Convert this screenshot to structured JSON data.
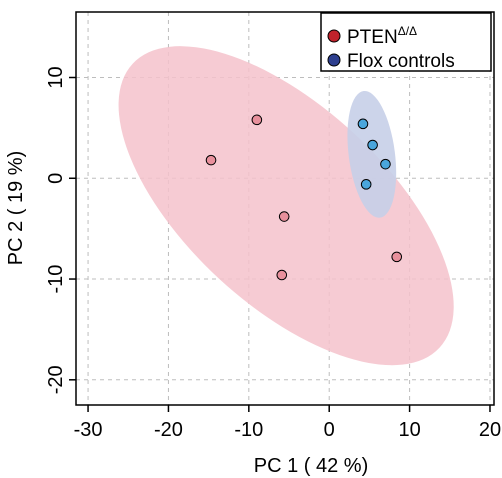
{
  "chart_data": {
    "type": "scatter",
    "xlabel": "PC 1 ( 42 %)",
    "ylabel": "PC 2 ( 19 %)",
    "xlim": [
      -31.5,
      20.5
    ],
    "ylim": [
      -22.5,
      16.5
    ],
    "xticks": [
      -30,
      -20,
      -10,
      0,
      10,
      20
    ],
    "yticks": [
      -20,
      -10,
      0,
      10
    ],
    "xtick_labels": [
      "-30",
      "-20",
      "-10",
      "0",
      "10",
      "20"
    ],
    "ytick_labels": [
      "-20",
      "-10",
      "0",
      "10"
    ],
    "grid": true,
    "legend_position": "top-right",
    "series": [
      {
        "name": "PTEN",
        "name_superscript": "Δ/Δ",
        "color": "#e8909c",
        "legend_color": "#c0222b",
        "ellipse_color": "#f5c2cb",
        "points": [
          {
            "x": -14.7,
            "y": 1.8
          },
          {
            "x": -9.0,
            "y": 5.8
          },
          {
            "x": -5.6,
            "y": -3.8
          },
          {
            "x": -5.9,
            "y": -9.6
          },
          {
            "x": 8.4,
            "y": -7.8
          }
        ]
      },
      {
        "name": "Flox controls",
        "color": "#4aa6dc",
        "legend_color": "#2e3f8f",
        "ellipse_color": "#c7cfe8",
        "points": [
          {
            "x": 4.2,
            "y": 5.4
          },
          {
            "x": 5.4,
            "y": 3.3
          },
          {
            "x": 7.0,
            "y": 1.4
          },
          {
            "x": 4.6,
            "y": -0.6
          }
        ]
      }
    ]
  }
}
